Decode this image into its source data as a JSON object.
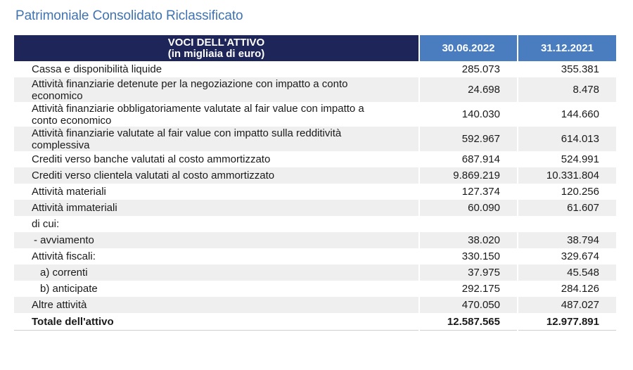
{
  "title": "Patrimoniale Consolidato Riclassificato",
  "header": {
    "label_line1": "VOCI DELL'ATTIVO",
    "label_line2": "(in migliaia di euro)",
    "col_a": "30.06.2022",
    "col_b": "31.12.2021"
  },
  "rows": [
    {
      "label": "Cassa e disponibilità liquide",
      "a": "285.073",
      "b": "355.381"
    },
    {
      "label": "Attività finanziarie detenute per la negoziazione con impatto a conto economico",
      "a": "24.698",
      "b": "8.478"
    },
    {
      "label": "Attività finanziarie obbligatoriamente valutate al fair value con impatto a conto economico",
      "a": "140.030",
      "b": "144.660"
    },
    {
      "label": "Attività finanziarie valutate al fair value con impatto sulla redditività complessiva",
      "a": "592.967",
      "b": "614.013"
    },
    {
      "label": "Crediti verso banche valutati al costo ammortizzato",
      "a": "687.914",
      "b": "524.991"
    },
    {
      "label": "Crediti verso clientela valutati al costo ammortizzato",
      "a": "9.869.219",
      "b": "10.331.804"
    },
    {
      "label": "Attività materiali",
      "a": "127.374",
      "b": "120.256"
    },
    {
      "label": "Attività immateriali",
      "a": "60.090",
      "b": "61.607"
    },
    {
      "label": "di cui:",
      "a": "",
      "b": ""
    },
    {
      "label": "- avviamento",
      "a": "38.020",
      "b": "38.794"
    },
    {
      "label": "Attività fiscali:",
      "a": "330.150",
      "b": "329.674"
    },
    {
      "label": "a) correnti",
      "a": "37.975",
      "b": "45.548"
    },
    {
      "label": "b) anticipate",
      "a": "292.175",
      "b": "284.126"
    },
    {
      "label": "Altre attività",
      "a": "470.050",
      "b": "487.027"
    }
  ],
  "total": {
    "label": "Totale dell'attivo",
    "a": "12.587.565",
    "b": "12.977.891"
  }
}
